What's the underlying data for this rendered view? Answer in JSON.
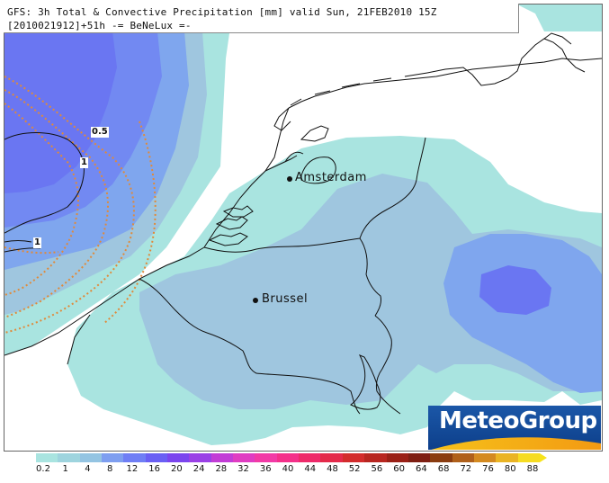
{
  "header": {
    "line1": "GFS: 3h Total & Convective Precipitation [mm] valid Sun, 21FEB2010 15Z",
    "line2": "[2010021912]+51h -= BeNeLux =-"
  },
  "cities": [
    {
      "name": "Amsterdam"
    },
    {
      "name": "Brussel"
    }
  ],
  "contour_labels": [
    "0.5",
    "1",
    "1"
  ],
  "logo": {
    "text": "MeteoGroup"
  },
  "legend": {
    "labels": [
      "0.2",
      "1",
      "4",
      "8",
      "12",
      "16",
      "20",
      "24",
      "28",
      "32",
      "36",
      "40",
      "44",
      "48",
      "52",
      "56",
      "60",
      "64",
      "68",
      "72",
      "76",
      "80",
      "88"
    ],
    "colors": [
      "#a9e4e0",
      "#9ed4de",
      "#94c4e2",
      "#7e9ef0",
      "#6f7ef5",
      "#6a5ff4",
      "#7b45ee",
      "#9a40e6",
      "#c23cd6",
      "#e03cc2",
      "#f23aa6",
      "#f4308a",
      "#ee2a6a",
      "#e42a4a",
      "#d32c2c",
      "#b82620",
      "#9a2016",
      "#7e1e12",
      "#8a3c10",
      "#b0601a",
      "#d48a20",
      "#eab424",
      "#f6dc22"
    ]
  },
  "precip_colors": {
    "level_0_2": "#a9e4e0",
    "level_1": "#9fc6df",
    "level_2": "#7fa6ee",
    "level_4": "#7289f2",
    "level_8": "#6a76f2"
  }
}
